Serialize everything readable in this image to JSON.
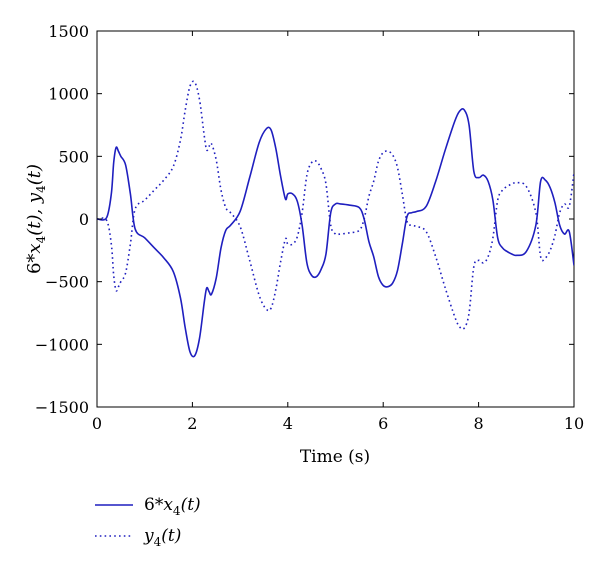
{
  "chart_data": {
    "type": "line",
    "title": "",
    "xlabel": "Time (s)",
    "ylabel": "6*x4(t), y4(t)",
    "ylabel_parts": {
      "a": "6*",
      "b": "x",
      "c": "4",
      "d": "(t), ",
      "e": "y",
      "f": "4",
      "g": "(t)"
    },
    "xlim": [
      0,
      10
    ],
    "ylim": [
      -1500,
      1500
    ],
    "xticks": [
      0,
      2,
      4,
      6,
      8,
      10
    ],
    "yticks": [
      -1500,
      -1000,
      -500,
      0,
      500,
      1000,
      1500
    ],
    "xtick_labels": [
      "0",
      "2",
      "4",
      "6",
      "8",
      "10"
    ],
    "ytick_labels": [
      "−1500",
      "−1000",
      "−500",
      "0",
      "500",
      "1000",
      "1500"
    ],
    "grid": false,
    "legend_position": "bottom-left, outside",
    "line_color": "#1f1fbf",
    "series": [
      {
        "name": "6*x4(t)",
        "name_parts": {
          "a": "6*",
          "b": "x",
          "c": "4",
          "d": "(t)"
        },
        "style": "solid",
        "x": [
          0,
          0.2,
          0.3,
          0.35,
          0.4,
          0.45,
          0.5,
          0.6,
          0.7,
          0.8,
          1.0,
          1.2,
          1.4,
          1.6,
          1.75,
          1.85,
          1.95,
          2.05,
          2.15,
          2.25,
          2.3,
          2.35,
          2.4,
          2.5,
          2.6,
          2.7,
          2.8,
          3.0,
          3.2,
          3.4,
          3.55,
          3.65,
          3.75,
          3.85,
          3.95,
          4.0,
          4.1,
          4.2,
          4.3,
          4.4,
          4.5,
          4.6,
          4.7,
          4.8,
          4.9,
          5.0,
          5.1,
          5.3,
          5.5,
          5.6,
          5.7,
          5.8,
          5.9,
          6.0,
          6.1,
          6.2,
          6.3,
          6.4,
          6.5,
          6.6,
          6.7,
          6.9,
          7.1,
          7.3,
          7.5,
          7.6,
          7.7,
          7.8,
          7.9,
          8.0,
          8.1,
          8.2,
          8.3,
          8.4,
          8.5,
          8.6,
          8.7,
          8.8,
          9.0,
          9.2,
          9.3,
          9.4,
          9.5,
          9.6,
          9.7,
          9.8,
          9.9,
          10.0
        ],
        "y": [
          0,
          10,
          200,
          450,
          570,
          540,
          500,
          430,
          200,
          -80,
          -150,
          -230,
          -310,
          -420,
          -630,
          -870,
          -1060,
          -1090,
          -950,
          -660,
          -550,
          -580,
          -600,
          -470,
          -230,
          -90,
          -50,
          60,
          330,
          610,
          720,
          710,
          560,
          340,
          160,
          200,
          200,
          140,
          -50,
          -350,
          -450,
          -460,
          -400,
          -280,
          50,
          120,
          120,
          110,
          90,
          0,
          -180,
          -300,
          -460,
          -530,
          -540,
          -510,
          -410,
          -200,
          20,
          50,
          60,
          100,
          300,
          550,
          780,
          860,
          870,
          750,
          380,
          330,
          350,
          300,
          150,
          -150,
          -230,
          -260,
          -280,
          -290,
          -260,
          -50,
          300,
          310,
          250,
          130,
          -50,
          -120,
          -100,
          -370
        ]
      },
      {
        "name": "y4(t)",
        "name_parts": {
          "e": "y",
          "f": "4",
          "g": "(t)"
        },
        "style": "dotted",
        "x": [
          0,
          0.2,
          0.3,
          0.35,
          0.4,
          0.45,
          0.5,
          0.6,
          0.7,
          0.8,
          1.0,
          1.2,
          1.4,
          1.6,
          1.75,
          1.85,
          1.95,
          2.05,
          2.15,
          2.25,
          2.3,
          2.35,
          2.4,
          2.5,
          2.6,
          2.7,
          2.8,
          3.0,
          3.2,
          3.4,
          3.55,
          3.65,
          3.75,
          3.85,
          3.95,
          4.0,
          4.1,
          4.2,
          4.3,
          4.4,
          4.5,
          4.6,
          4.7,
          4.8,
          4.9,
          5.0,
          5.1,
          5.3,
          5.5,
          5.6,
          5.7,
          5.8,
          5.9,
          6.0,
          6.1,
          6.2,
          6.3,
          6.4,
          6.5,
          6.6,
          6.7,
          6.9,
          7.1,
          7.3,
          7.5,
          7.6,
          7.7,
          7.8,
          7.9,
          8.0,
          8.1,
          8.2,
          8.3,
          8.4,
          8.5,
          8.6,
          8.7,
          8.8,
          9.0,
          9.2,
          9.3,
          9.4,
          9.5,
          9.6,
          9.7,
          9.8,
          9.9,
          10.0
        ],
        "y": [
          0,
          -10,
          -200,
          -450,
          -570,
          -540,
          -500,
          -430,
          -200,
          80,
          150,
          230,
          310,
          420,
          630,
          870,
          1060,
          1090,
          950,
          660,
          550,
          580,
          600,
          470,
          230,
          90,
          50,
          -60,
          -330,
          -610,
          -720,
          -710,
          -560,
          -340,
          -160,
          -200,
          -200,
          -140,
          50,
          350,
          450,
          460,
          400,
          280,
          -50,
          -120,
          -120,
          -110,
          -90,
          0,
          180,
          300,
          460,
          530,
          540,
          510,
          410,
          200,
          -20,
          -50,
          -60,
          -100,
          -300,
          -550,
          -780,
          -860,
          -870,
          -750,
          -380,
          -330,
          -350,
          -300,
          -150,
          150,
          230,
          260,
          280,
          290,
          260,
          50,
          -300,
          -310,
          -250,
          -130,
          50,
          120,
          100,
          370
        ]
      }
    ]
  }
}
